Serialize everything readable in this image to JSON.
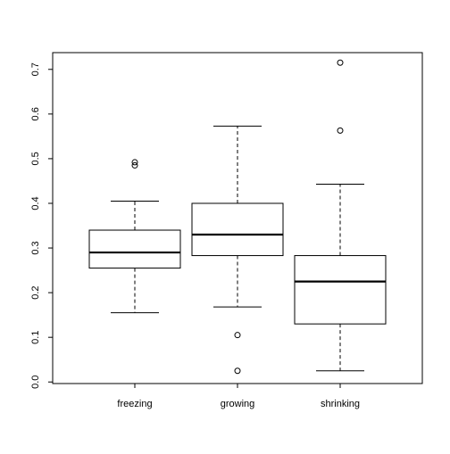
{
  "chart_data": {
    "type": "boxplot",
    "title": "",
    "xlabel": "",
    "ylabel": "",
    "categories": [
      "freezing",
      "growing",
      "shrinking"
    ],
    "boxes": [
      {
        "name": "freezing",
        "whisker_low": 0.155,
        "q1": 0.255,
        "median": 0.29,
        "q3": 0.34,
        "whisker_high": 0.405,
        "outliers": [
          0.485,
          0.492
        ]
      },
      {
        "name": "growing",
        "whisker_low": 0.168,
        "q1": 0.283,
        "median": 0.33,
        "q3": 0.4,
        "whisker_high": 0.573,
        "outliers": [
          0.105,
          0.025
        ]
      },
      {
        "name": "shrinking",
        "whisker_low": 0.025,
        "q1": 0.13,
        "median": 0.225,
        "q3": 0.283,
        "whisker_high": 0.443,
        "outliers": [
          0.563,
          0.715
        ]
      }
    ],
    "yticks": [
      "0.0",
      "0.1",
      "0.2",
      "0.3",
      "0.4",
      "0.5",
      "0.6",
      "0.7"
    ],
    "ylim": [
      0,
      0.7
    ],
    "grid": false,
    "colors": {
      "stroke": "#000000",
      "background": "#ffffff"
    }
  }
}
